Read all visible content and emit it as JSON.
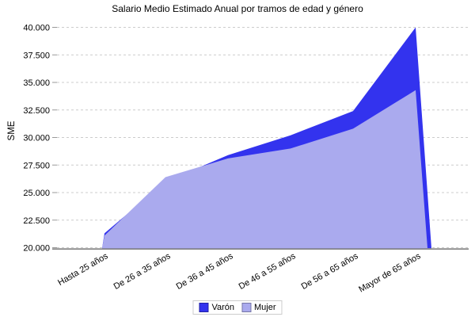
{
  "chart_data": {
    "type": "area",
    "title": "Salario Medio Estimado Anual por tramos de edad y género",
    "xlabel": "",
    "ylabel": "SME",
    "categories": [
      "Hasta 25 años",
      "De 26 a 35 años",
      "De 36 a 45 años",
      "De 46 a 55 años",
      "De 56 a 65 años",
      "Mayor de 65 años"
    ],
    "series": [
      {
        "name": "Varón",
        "color": "#3333EE",
        "values": [
          21300,
          26000,
          28400,
          30200,
          32400,
          40000
        ]
      },
      {
        "name": "Mujer",
        "color": "#AAAAEE",
        "values": [
          21100,
          26400,
          28100,
          29000,
          30800,
          34300
        ]
      }
    ],
    "ylim": [
      20000,
      40000
    ],
    "y_tick_step": 2500,
    "y_tick_labels": [
      "20.000",
      "22.500",
      "25.000",
      "27.500",
      "30.000",
      "32.500",
      "35.000",
      "37.500",
      "40.000"
    ],
    "grid": "horizontal-dashed",
    "legend_position": "bottom",
    "grid_color": "#cccccc",
    "axis_color": "#808080"
  }
}
